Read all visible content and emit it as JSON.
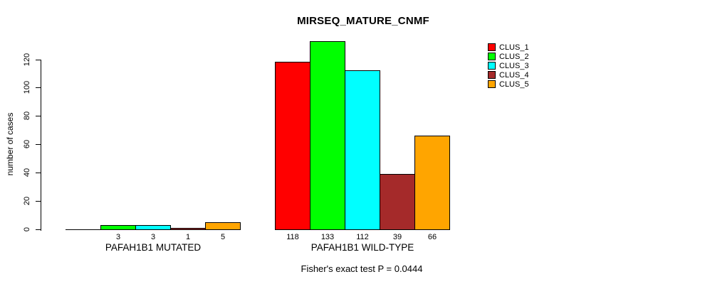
{
  "title": "MIRSEQ_MATURE_CNMF",
  "y_axis": {
    "label": "number of cases",
    "ticks": [
      "0",
      "20",
      "40",
      "60",
      "80",
      "100",
      "120"
    ]
  },
  "footnote": "Fisher's exact test P = 0.0444",
  "legend": {
    "position": "top-right",
    "items": [
      {
        "label": "CLUS_1",
        "color": "#FF0000"
      },
      {
        "label": "CLUS_2",
        "color": "#00FF00"
      },
      {
        "label": "CLUS_3",
        "color": "#00FFFF"
      },
      {
        "label": "CLUS_4",
        "color": "#A52A2A"
      },
      {
        "label": "CLUS_5",
        "color": "#FFA500"
      }
    ]
  },
  "chart_data": {
    "type": "bar",
    "title": "MIRSEQ_MATURE_CNMF",
    "xlabel": "",
    "ylabel": "number of cases",
    "ylim": [
      0,
      133
    ],
    "y_ticks": [
      0,
      20,
      40,
      60,
      80,
      100,
      120
    ],
    "grid": false,
    "legend_position": "top-right",
    "categories": [
      "PAFAH1B1 MUTATED",
      "PAFAH1B1 WILD-TYPE"
    ],
    "series": [
      {
        "name": "CLUS_1",
        "color": "#FF0000",
        "values": [
          0,
          118
        ]
      },
      {
        "name": "CLUS_2",
        "color": "#00FF00",
        "values": [
          3,
          133
        ]
      },
      {
        "name": "CLUS_3",
        "color": "#00FFFF",
        "values": [
          3,
          112
        ]
      },
      {
        "name": "CLUS_4",
        "color": "#A52A2A",
        "values": [
          1,
          39
        ]
      },
      {
        "name": "CLUS_5",
        "color": "#FFA500",
        "values": [
          5,
          66
        ]
      }
    ],
    "bar_value_labels": [
      [
        "",
        "3",
        "3",
        "1",
        "5"
      ],
      [
        "118",
        "133",
        "112",
        "39",
        "66"
      ]
    ],
    "annotation": "Fisher's exact test P = 0.0444"
  }
}
